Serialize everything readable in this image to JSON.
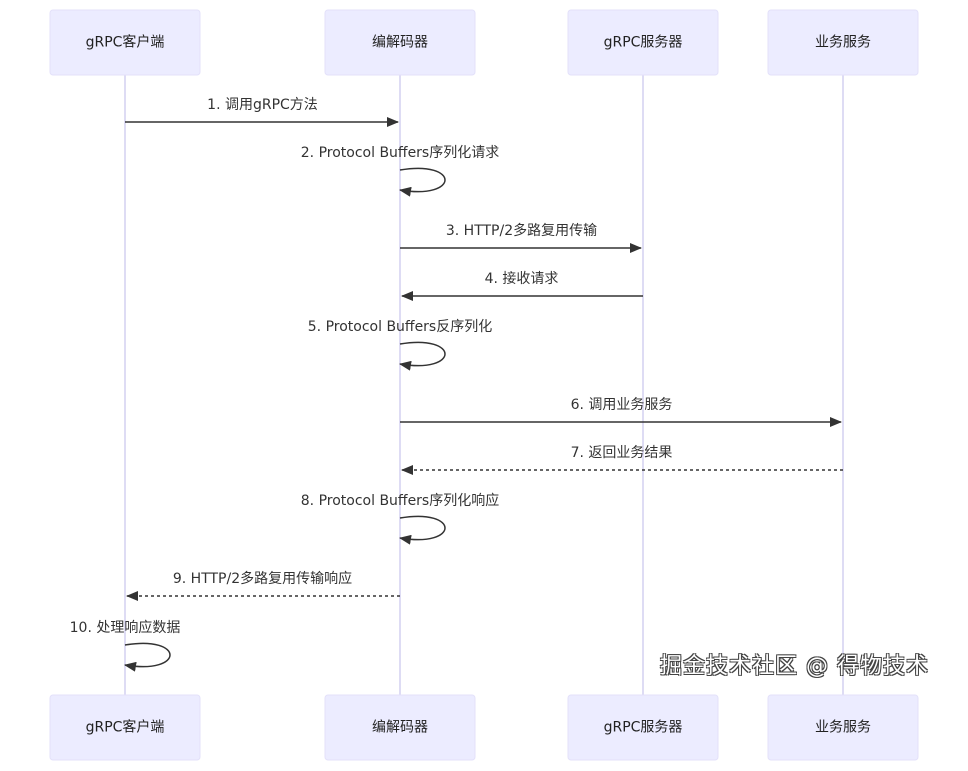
{
  "participants": [
    {
      "id": "client",
      "label": "gRPC客户端"
    },
    {
      "id": "codec",
      "label": "编解码器"
    },
    {
      "id": "server",
      "label": "gRPC服务器"
    },
    {
      "id": "business",
      "label": "业务服务"
    }
  ],
  "messages": [
    {
      "from": "client",
      "to": "codec",
      "label": "1. 调用gRPC方法",
      "style": "solid"
    },
    {
      "from": "codec",
      "to": "codec",
      "label": "2. Protocol Buffers序列化请求",
      "style": "solid"
    },
    {
      "from": "codec",
      "to": "server",
      "label": "3. HTTP/2多路复用传输",
      "style": "solid"
    },
    {
      "from": "server",
      "to": "codec",
      "label": "4. 接收请求",
      "style": "solid"
    },
    {
      "from": "codec",
      "to": "codec",
      "label": "5. Protocol Buffers反序列化",
      "style": "solid"
    },
    {
      "from": "codec",
      "to": "business",
      "label": "6. 调用业务服务",
      "style": "solid"
    },
    {
      "from": "business",
      "to": "codec",
      "label": "7. 返回业务结果",
      "style": "dashed"
    },
    {
      "from": "codec",
      "to": "codec",
      "label": "8. Protocol Buffers序列化响应",
      "style": "solid"
    },
    {
      "from": "codec",
      "to": "client",
      "label": "9. HTTP/2多路复用传输响应",
      "style": "dashed"
    },
    {
      "from": "client",
      "to": "client",
      "label": "10. 处理响应数据",
      "style": "solid"
    }
  ],
  "watermark": "掘金技术社区 @ 得物技术",
  "colors": {
    "actor_fill": "#ECECFF",
    "lifeline": "#d4d0f0",
    "line": "#333333"
  }
}
